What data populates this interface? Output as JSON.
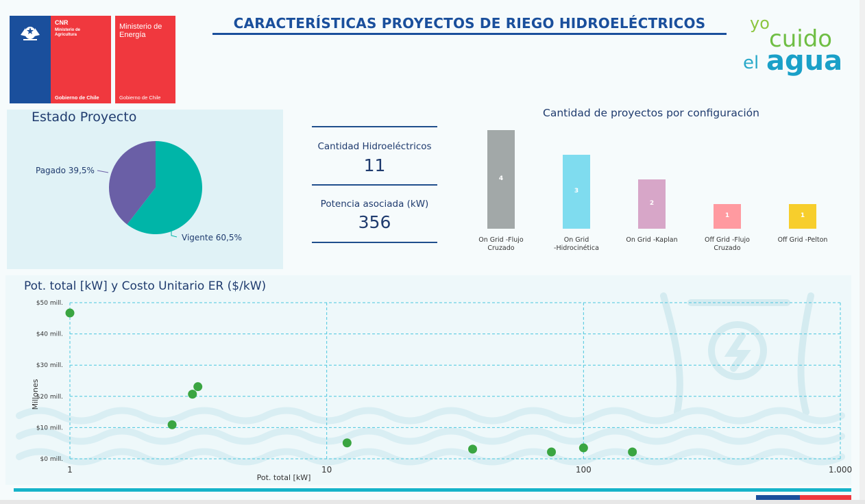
{
  "header": {
    "title": "CARACTERÍSTICAS PROYECTOS DE RIEGO HIDROELÉCTRICOS",
    "cnr_logo": {
      "name": "CNR",
      "sub": "Ministerio de Agricultura",
      "footer": "Gobierno de Chile"
    },
    "energia_logo": {
      "name": "Ministerio de Energía",
      "footer": "Gobierno de Chile"
    },
    "brand": {
      "line1": "yo",
      "line2": "cuido",
      "line3": "el",
      "line4": "agua"
    }
  },
  "colors": {
    "navy": "#1a4f9c",
    "red": "#f0383e",
    "teal": "#00b5a8",
    "purple": "#6a5fa6",
    "scatter_point": "#3aa541"
  },
  "kpis": {
    "hydro_label": "Cantidad Hidroeléctricos",
    "hydro_value": "11",
    "power_label": "Potencia asociada (kW)",
    "power_value": "356"
  },
  "chart_data": [
    {
      "type": "pie",
      "title": "Estado Proyecto",
      "slices": [
        {
          "label": "Vigente",
          "value": 60.5,
          "display": "Vigente 60,5%",
          "color": "#00b5a8"
        },
        {
          "label": "Pagado",
          "value": 39.5,
          "display": "Pagado 39,5%",
          "color": "#6a5fa6"
        }
      ]
    },
    {
      "type": "bar",
      "title": "Cantidad de proyectos por configuración",
      "categories": [
        [
          "On Grid -Flujo",
          "Cruzado"
        ],
        [
          "On Grid",
          "-Hidrocinética"
        ],
        [
          "On Grid -Kaplan"
        ],
        [
          "Off Grid -Flujo",
          "Cruzado"
        ],
        [
          "Off Grid -Pelton"
        ]
      ],
      "values": [
        4,
        3,
        2,
        1,
        1
      ],
      "colors": [
        "#a2a8a8",
        "#7fdcef",
        "#d7a6c8",
        "#ff9aa0",
        "#f7ce2c"
      ],
      "ylim": [
        0,
        4
      ]
    },
    {
      "type": "scatter",
      "title": "Pot. total [kW] y Costo Unitario ER ($/kW)",
      "xlabel": "Pot. total [kW]",
      "ylabel": "Millones",
      "xscale": "log",
      "xlim": [
        1,
        1000
      ],
      "ylim": [
        0,
        50
      ],
      "xticks": [
        {
          "value": 1,
          "label": "1"
        },
        {
          "value": 10,
          "label": "10"
        },
        {
          "value": 100,
          "label": "100"
        },
        {
          "value": 1000,
          "label": "1.000"
        }
      ],
      "yticks": [
        {
          "value": 0,
          "label": "$0 mill."
        },
        {
          "value": 10,
          "label": "$10 mill."
        },
        {
          "value": 20,
          "label": "$20 mill."
        },
        {
          "value": 30,
          "label": "$30 mill."
        },
        {
          "value": 40,
          "label": "$40 mill."
        },
        {
          "value": 50,
          "label": "$50 mill."
        }
      ],
      "grid": true,
      "points": [
        {
          "x": 1,
          "y": 46.7
        },
        {
          "x": 2.5,
          "y": 10.9
        },
        {
          "x": 3,
          "y": 20.7
        },
        {
          "x": 3.15,
          "y": 23.1
        },
        {
          "x": 12,
          "y": 5.1
        },
        {
          "x": 37,
          "y": 3.1
        },
        {
          "x": 75,
          "y": 2.2
        },
        {
          "x": 100,
          "y": 3.5
        },
        {
          "x": 155,
          "y": 2.2
        }
      ]
    }
  ]
}
